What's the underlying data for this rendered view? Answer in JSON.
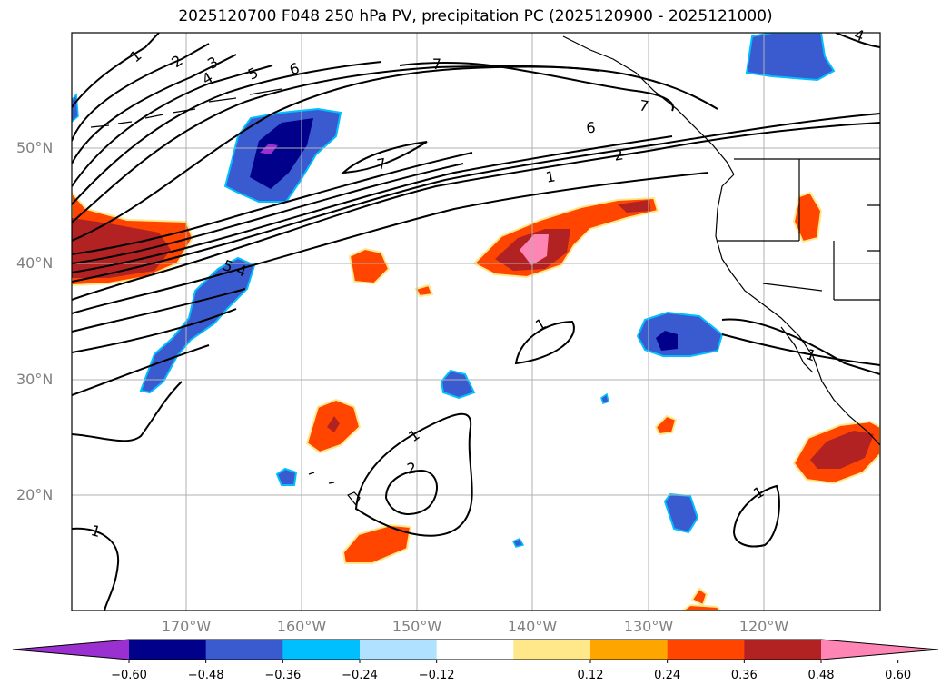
{
  "title": "2025120700 F048 250 hPa PV, precipitation PC (2025120900 - 2025121000)",
  "map": {
    "lat_ticks": [
      "50°N",
      "40°N",
      "30°N",
      "20°N"
    ],
    "lon_ticks": [
      "170°W",
      "160°W",
      "150°W",
      "140°W",
      "130°W",
      "120°W"
    ]
  },
  "contour_labels": [
    {
      "text": "1"
    },
    {
      "text": "2"
    },
    {
      "text": "3"
    },
    {
      "text": "4"
    },
    {
      "text": "5"
    },
    {
      "text": "6"
    },
    {
      "text": "7"
    },
    {
      "text": "7"
    },
    {
      "text": "6"
    },
    {
      "text": "2"
    },
    {
      "text": "1"
    },
    {
      "text": "5"
    },
    {
      "text": "4"
    },
    {
      "text": "1"
    },
    {
      "text": "1"
    },
    {
      "text": "2"
    },
    {
      "text": "1"
    },
    {
      "text": "1"
    },
    {
      "text": "1"
    },
    {
      "text": "4"
    },
    {
      "text": "7"
    }
  ],
  "colorbar": {
    "ticks": [
      "−0.60",
      "−0.48",
      "−0.36",
      "−0.24",
      "−0.12",
      "0.12",
      "0.24",
      "0.36",
      "0.48",
      "0.60"
    ],
    "colors": [
      "#9b30d0",
      "#00008b",
      "#3a5bd0",
      "#00bfff",
      "#b0e2ff",
      "#ffffff",
      "#ffe88a",
      "#ffa500",
      "#ff4500",
      "#b22222",
      "#ff86b4"
    ]
  },
  "colors": {
    "contour": "#000000",
    "coast": "#000000",
    "grid": "#b0b0b0"
  }
}
